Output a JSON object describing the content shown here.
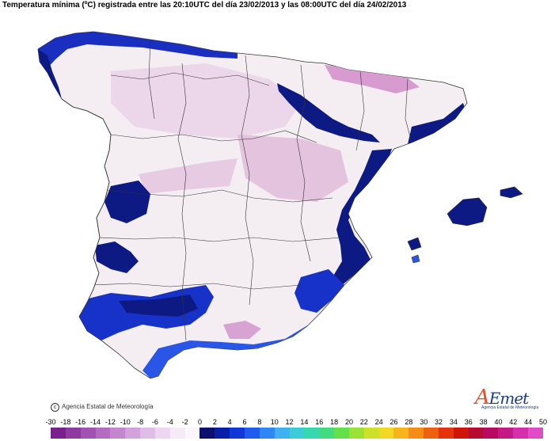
{
  "title": "Temperatura mínima (ºC) registrada entre las 20:10UTC del día 23/02/2013 y las 08:00UTC del día 24/02/2013",
  "copyright": "Agencia Estatal de Meteorología",
  "logo": {
    "name": "AEMet",
    "subtitle": "Agencia Estatal de Meteorología"
  },
  "legend": {
    "ticks": [
      "-30",
      "-18",
      "-16",
      "-14",
      "-12",
      "-10",
      "-8",
      "-6",
      "-4",
      "-2",
      "0",
      "2",
      "4",
      "6",
      "8",
      "10",
      "12",
      "14",
      "16",
      "18",
      "20",
      "22",
      "24",
      "26",
      "28",
      "30",
      "32",
      "34",
      "36",
      "38",
      "40",
      "42",
      "44",
      "50"
    ],
    "colors": [
      "#7a1f8e",
      "#8e3aa0",
      "#a252b2",
      "#b46cc2",
      "#c487cf",
      "#d3a2dc",
      "#e0bde7",
      "#ecd6f0",
      "#f5eaf6",
      "#fbf6fb",
      "#0c0f6e",
      "#0a1fa8",
      "#1038d8",
      "#1e5cf0",
      "#2f86f5",
      "#3fb0f0",
      "#3ccbd8",
      "#37d7b0",
      "#42dc7e",
      "#63e04a",
      "#9ae236",
      "#cde02a",
      "#f3d823",
      "#f7b51c",
      "#f48c16",
      "#ee6110",
      "#e5340b",
      "#d01408",
      "#b80b2f",
      "#b80a5e",
      "#c41a86",
      "#d52fab",
      "#e24bc6"
    ],
    "unit": "ºC"
  },
  "colors": {
    "land": "#f4eef3",
    "cold_pink": "#e7c8e3",
    "dark_pink": "#cf8bc6",
    "mild_dark": "#0d1a84",
    "mild_blue": "#1632c8",
    "sea": "#ffffff",
    "border": "#333333"
  }
}
